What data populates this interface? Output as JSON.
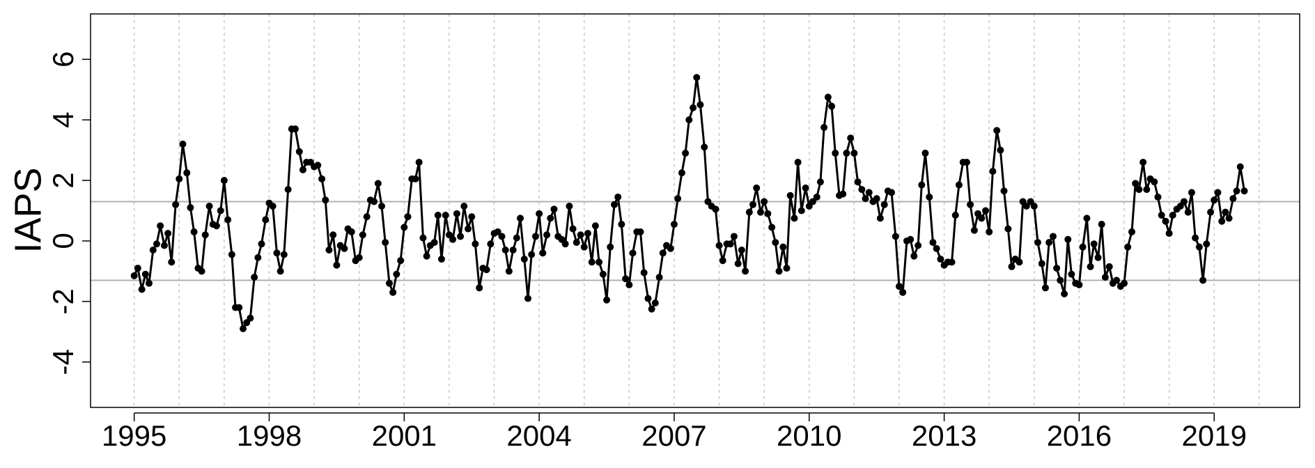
{
  "chart_data": {
    "type": "line",
    "ylabel": "IAPS",
    "x": [
      1995.0,
      1995.08,
      1995.17,
      1995.25,
      1995.33,
      1995.42,
      1995.5,
      1995.58,
      1995.67,
      1995.75,
      1995.83,
      1995.92,
      1996.0,
      1996.08,
      1996.17,
      1996.25,
      1996.33,
      1996.42,
      1996.5,
      1996.58,
      1996.67,
      1996.75,
      1996.83,
      1996.92,
      1997.0,
      1997.08,
      1997.17,
      1997.25,
      1997.33,
      1997.42,
      1997.5,
      1997.58,
      1997.67,
      1997.75,
      1997.83,
      1997.92,
      1998.0,
      1998.08,
      1998.17,
      1998.25,
      1998.33,
      1998.42,
      1998.5,
      1998.58,
      1998.67,
      1998.75,
      1998.83,
      1998.92,
      1999.0,
      1999.08,
      1999.17,
      1999.25,
      1999.33,
      1999.42,
      1999.5,
      1999.58,
      1999.67,
      1999.75,
      1999.83,
      1999.92,
      2000.0,
      2000.08,
      2000.17,
      2000.25,
      2000.33,
      2000.42,
      2000.5,
      2000.58,
      2000.67,
      2000.75,
      2000.83,
      2000.92,
      2001.0,
      2001.08,
      2001.17,
      2001.25,
      2001.33,
      2001.42,
      2001.5,
      2001.58,
      2001.67,
      2001.75,
      2001.83,
      2001.92,
      2002.0,
      2002.08,
      2002.17,
      2002.25,
      2002.33,
      2002.42,
      2002.5,
      2002.58,
      2002.67,
      2002.75,
      2002.83,
      2002.92,
      2003.0,
      2003.08,
      2003.17,
      2003.25,
      2003.33,
      2003.42,
      2003.5,
      2003.58,
      2003.67,
      2003.75,
      2003.83,
      2003.92,
      2004.0,
      2004.08,
      2004.17,
      2004.25,
      2004.33,
      2004.42,
      2004.5,
      2004.58,
      2004.67,
      2004.75,
      2004.83,
      2004.92,
      2005.0,
      2005.08,
      2005.17,
      2005.25,
      2005.33,
      2005.42,
      2005.5,
      2005.58,
      2005.67,
      2005.75,
      2005.83,
      2005.92,
      2006.0,
      2006.08,
      2006.17,
      2006.25,
      2006.33,
      2006.42,
      2006.5,
      2006.58,
      2006.67,
      2006.75,
      2006.83,
      2006.92,
      2007.0,
      2007.08,
      2007.17,
      2007.25,
      2007.33,
      2007.42,
      2007.5,
      2007.58,
      2007.67,
      2007.75,
      2007.83,
      2007.92,
      2008.0,
      2008.08,
      2008.17,
      2008.25,
      2008.33,
      2008.42,
      2008.5,
      2008.58,
      2008.67,
      2008.75,
      2008.83,
      2008.92,
      2009.0,
      2009.08,
      2009.17,
      2009.25,
      2009.33,
      2009.42,
      2009.5,
      2009.58,
      2009.67,
      2009.75,
      2009.83,
      2009.92,
      2010.0,
      2010.08,
      2010.17,
      2010.25,
      2010.33,
      2010.42,
      2010.5,
      2010.58,
      2010.67,
      2010.75,
      2010.83,
      2010.92,
      2011.0,
      2011.08,
      2011.17,
      2011.25,
      2011.33,
      2011.42,
      2011.5,
      2011.58,
      2011.67,
      2011.75,
      2011.83,
      2011.92,
      2012.0,
      2012.08,
      2012.17,
      2012.25,
      2012.33,
      2012.42,
      2012.5,
      2012.58,
      2012.67,
      2012.75,
      2012.83,
      2012.92,
      2013.0,
      2013.08,
      2013.17,
      2013.25,
      2013.33,
      2013.42,
      2013.5,
      2013.58,
      2013.67,
      2013.75,
      2013.83,
      2013.92,
      2014.0,
      2014.08,
      2014.17,
      2014.25,
      2014.33,
      2014.42,
      2014.5,
      2014.58,
      2014.67,
      2014.75,
      2014.83,
      2014.92,
      2015.0,
      2015.08,
      2015.17,
      2015.25,
      2015.33,
      2015.42,
      2015.5,
      2015.58,
      2015.67,
      2015.75,
      2015.83,
      2015.92,
      2016.0,
      2016.08,
      2016.17,
      2016.25,
      2016.33,
      2016.42,
      2016.5,
      2016.58,
      2016.67,
      2016.75,
      2016.83,
      2016.92,
      2017.0,
      2017.08,
      2017.17,
      2017.25,
      2017.33,
      2017.42,
      2017.5,
      2017.58,
      2017.67,
      2017.75,
      2017.83,
      2017.92,
      2018.0,
      2018.08,
      2018.17,
      2018.25,
      2018.33,
      2018.42,
      2018.5,
      2018.58,
      2018.67,
      2018.75,
      2018.83,
      2018.92,
      2019.0,
      2019.08,
      2019.17,
      2019.25,
      2019.33,
      2019.42,
      2019.5,
      2019.58,
      2019.67
    ],
    "values": [
      -1.15,
      -0.9,
      -1.6,
      -1.1,
      -1.4,
      -0.3,
      -0.1,
      0.5,
      -0.15,
      0.25,
      -0.7,
      1.2,
      2.05,
      3.2,
      2.25,
      1.1,
      0.3,
      -0.9,
      -1.0,
      0.2,
      1.15,
      0.55,
      0.5,
      1.0,
      2.0,
      0.7,
      -0.45,
      -2.2,
      -2.2,
      -2.9,
      -2.7,
      -2.55,
      -1.2,
      -0.55,
      -0.1,
      0.7,
      1.25,
      1.15,
      -0.4,
      -1.0,
      -0.45,
      1.7,
      3.7,
      3.7,
      2.95,
      2.35,
      2.6,
      2.6,
      2.45,
      2.5,
      2.05,
      1.35,
      -0.3,
      0.2,
      -0.8,
      -0.15,
      -0.25,
      0.4,
      0.3,
      -0.65,
      -0.55,
      0.2,
      0.8,
      1.35,
      1.3,
      1.9,
      1.15,
      -0.05,
      -1.4,
      -1.7,
      -1.1,
      -0.65,
      0.45,
      0.8,
      2.05,
      2.05,
      2.6,
      0.1,
      -0.5,
      -0.15,
      -0.05,
      0.85,
      -0.6,
      0.85,
      0.2,
      0.05,
      0.9,
      0.15,
      1.15,
      0.4,
      0.8,
      -0.1,
      -1.55,
      -0.9,
      -0.95,
      -0.1,
      0.25,
      0.3,
      0.15,
      -0.3,
      -1.0,
      -0.3,
      0.1,
      0.75,
      -0.6,
      -1.9,
      -0.45,
      0.15,
      0.9,
      -0.4,
      0.2,
      0.75,
      1.05,
      0.15,
      0.05,
      -0.1,
      1.15,
      0.4,
      -0.05,
      0.2,
      -0.2,
      0.25,
      -0.7,
      0.5,
      -0.7,
      -1.1,
      -1.95,
      -0.2,
      1.2,
      1.45,
      0.55,
      -1.25,
      -1.45,
      -0.4,
      0.3,
      0.3,
      -1.05,
      -1.9,
      -2.25,
      -2.05,
      -1.2,
      -0.4,
      -0.15,
      -0.25,
      0.55,
      1.4,
      2.25,
      2.9,
      4.0,
      4.4,
      5.4,
      4.5,
      3.1,
      1.3,
      1.15,
      1.05,
      -0.15,
      -0.65,
      -0.1,
      -0.1,
      0.15,
      -0.75,
      -0.3,
      -1.0,
      0.95,
      1.2,
      1.75,
      0.95,
      1.3,
      0.9,
      0.45,
      -0.05,
      -1.0,
      -0.2,
      -0.9,
      1.5,
      0.75,
      2.6,
      1.0,
      1.75,
      1.15,
      1.3,
      1.45,
      1.95,
      3.75,
      4.75,
      4.45,
      2.9,
      1.5,
      1.55,
      2.9,
      3.4,
      2.9,
      1.95,
      1.7,
      1.4,
      1.6,
      1.3,
      1.4,
      0.75,
      1.2,
      1.65,
      1.6,
      0.15,
      -1.5,
      -1.7,
      0.0,
      0.05,
      -0.5,
      -0.15,
      1.85,
      2.9,
      1.45,
      -0.05,
      -0.25,
      -0.6,
      -0.8,
      -0.7,
      -0.7,
      0.85,
      1.85,
      2.6,
      2.6,
      1.2,
      0.35,
      0.9,
      0.75,
      1.0,
      0.3,
      2.3,
      3.65,
      3.0,
      1.65,
      0.4,
      -0.85,
      -0.6,
      -0.7,
      1.3,
      1.15,
      1.3,
      1.15,
      -0.05,
      -0.75,
      -1.55,
      -0.05,
      0.15,
      -0.9,
      -1.3,
      -1.75,
      0.05,
      -1.1,
      -1.4,
      -1.45,
      -0.2,
      0.75,
      -0.85,
      -0.1,
      -0.55,
      0.55,
      -1.2,
      -0.85,
      -1.4,
      -1.3,
      -1.5,
      -1.4,
      -0.2,
      0.3,
      1.9,
      1.7,
      2.6,
      1.7,
      2.05,
      1.95,
      1.45,
      0.85,
      0.65,
      0.25,
      0.85,
      1.05,
      1.15,
      1.3,
      0.95,
      1.6,
      0.1,
      -0.2,
      -1.3,
      -0.1,
      0.95,
      1.35,
      1.6,
      0.65,
      0.95,
      0.75,
      1.4,
      1.65,
      2.45,
      1.65
    ],
    "color": "#000000",
    "xlim": [
      1994.03,
      2020.9
    ],
    "ylim": [
      -5.5,
      7.5
    ],
    "xticks": [
      1995,
      1998,
      2001,
      2004,
      2007,
      2010,
      2013,
      2016,
      2019
    ],
    "yticks": [
      -4,
      -2,
      0,
      2,
      4,
      6
    ],
    "xgrid": [
      1995,
      1996,
      1997,
      1998,
      1999,
      2000,
      2001,
      2002,
      2003,
      2004,
      2005,
      2006,
      2007,
      2008,
      2009,
      2010,
      2011,
      2012,
      2013,
      2014,
      2015,
      2016,
      2017,
      2018,
      2019,
      2020
    ],
    "hlines": [
      1.3,
      -1.3
    ]
  }
}
